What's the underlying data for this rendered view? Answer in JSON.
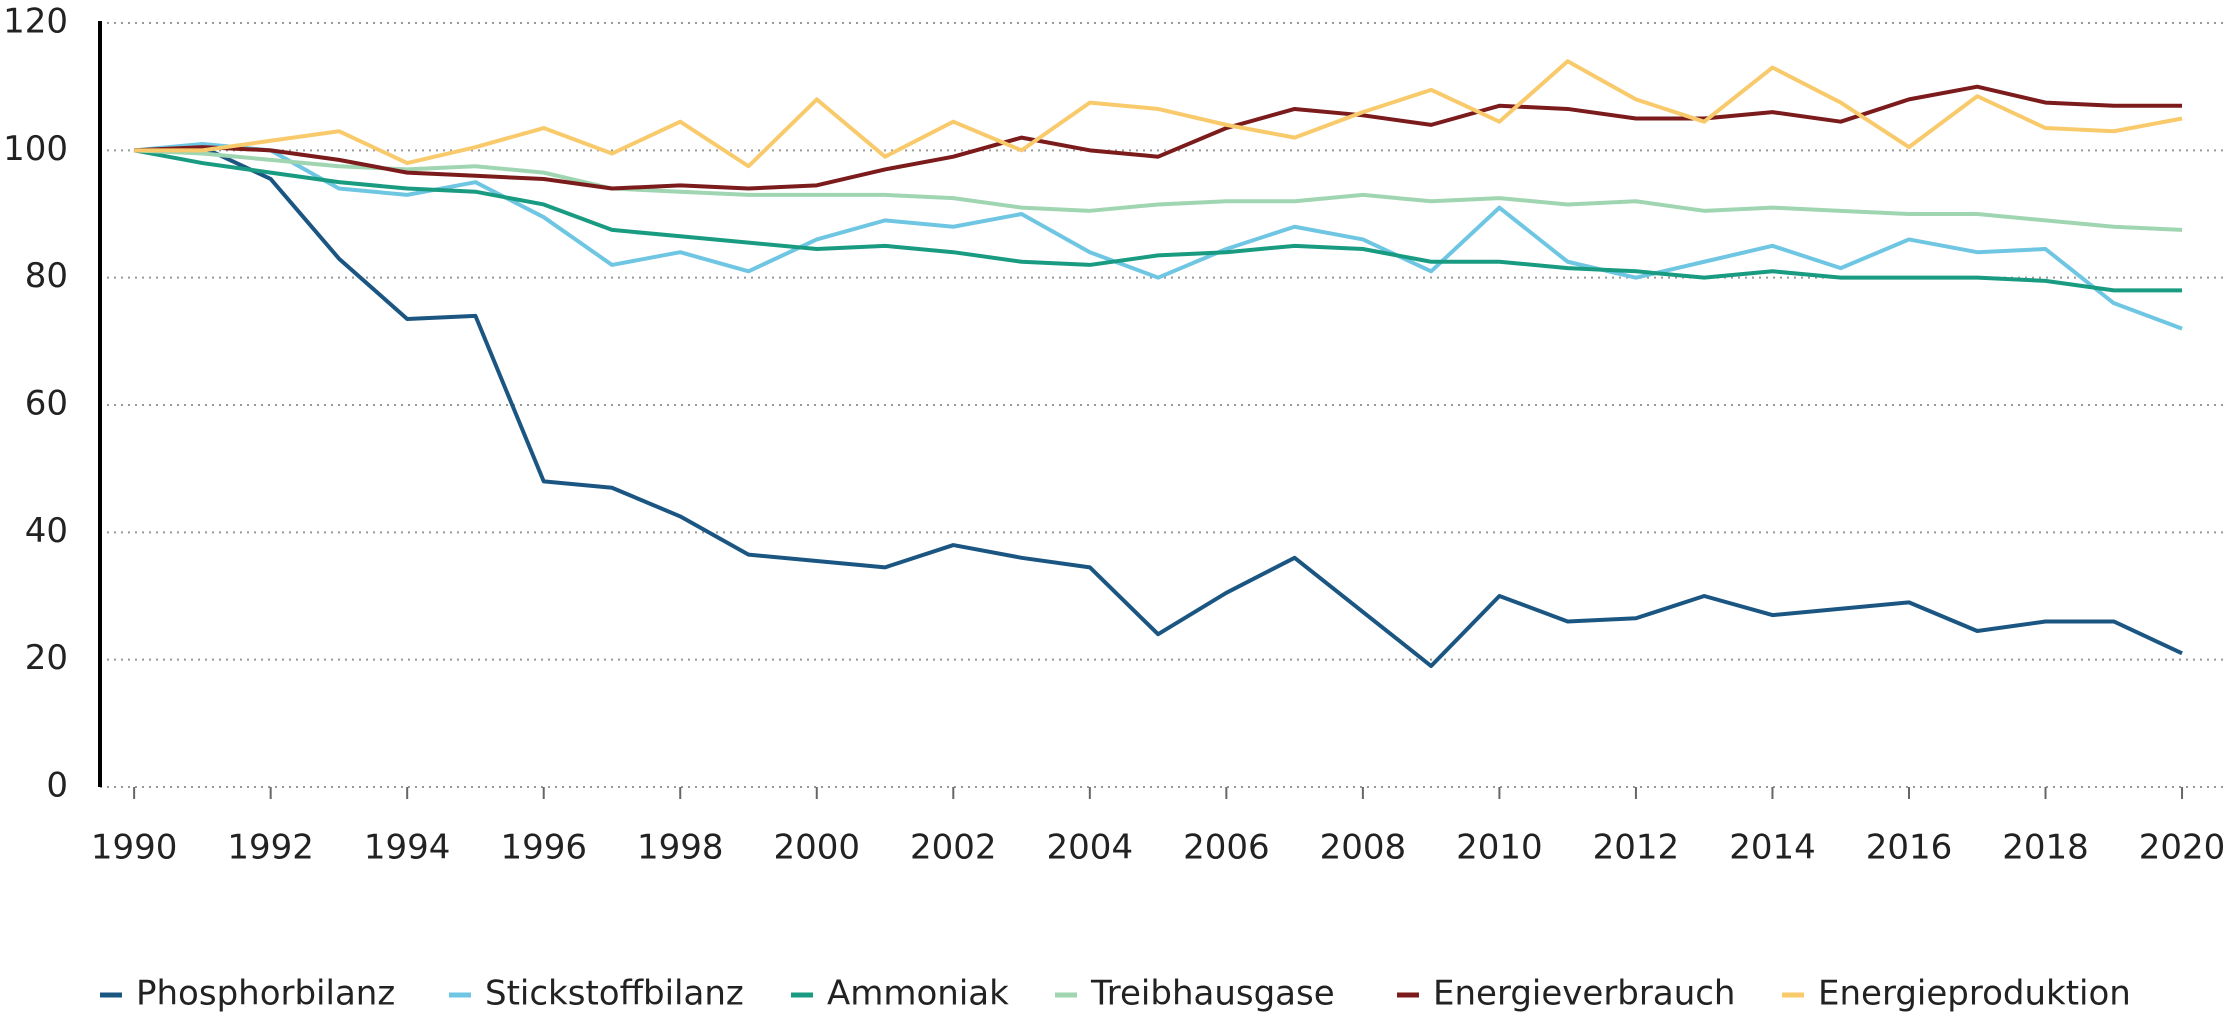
{
  "chart_data": {
    "type": "line",
    "x": [
      1990,
      1991,
      1992,
      1993,
      1994,
      1995,
      1996,
      1997,
      1998,
      1999,
      2000,
      2001,
      2002,
      2003,
      2004,
      2005,
      2006,
      2007,
      2008,
      2009,
      2010,
      2011,
      2012,
      2013,
      2014,
      2015,
      2016,
      2017,
      2018,
      2019,
      2020
    ],
    "series": [
      {
        "name": "Phosphorbilanz",
        "color": "#1b5683",
        "values": [
          100,
          100.5,
          95.5,
          83,
          73.5,
          74,
          48,
          47,
          42.5,
          36.5,
          35.5,
          34.5,
          38,
          36,
          34.5,
          24,
          30.5,
          36,
          27.5,
          19,
          30,
          26,
          26.5,
          30,
          27,
          28,
          29,
          24.5,
          26,
          26,
          21
        ]
      },
      {
        "name": "Stickstoffbilanz",
        "color": "#6fc6e3",
        "values": [
          100,
          101,
          100,
          94,
          93,
          95,
          89.5,
          82,
          84,
          81,
          86,
          89,
          88,
          90,
          84,
          80,
          84.5,
          88,
          86,
          81,
          91,
          82.5,
          80,
          82.5,
          85,
          81.5,
          86,
          84,
          84.5,
          76,
          72
        ]
      },
      {
        "name": "Ammoniak",
        "color": "#199b82",
        "values": [
          100,
          98,
          96.5,
          95,
          94,
          93.5,
          91.5,
          87.5,
          86.5,
          85.5,
          84.5,
          85,
          84,
          82.5,
          82,
          83.5,
          84,
          85,
          84.5,
          82.5,
          82.5,
          81.5,
          81,
          80,
          81,
          80,
          80,
          80,
          79.5,
          78,
          78
        ]
      },
      {
        "name": "Treibhausgase",
        "color": "#a0d5b1",
        "values": [
          100,
          99.5,
          98.5,
          97.5,
          97,
          97.5,
          96.5,
          94,
          93.5,
          93,
          93,
          93,
          92.5,
          91,
          90.5,
          91.5,
          92,
          92,
          93,
          92,
          92.5,
          91.5,
          92,
          90.5,
          91,
          90.5,
          90,
          90,
          89,
          88,
          87.5
        ]
      },
      {
        "name": "Energieverbrauch",
        "color": "#7b1b1b",
        "values": [
          100,
          100.5,
          100,
          98.5,
          96.5,
          96,
          95.5,
          94,
          94.5,
          94,
          94.5,
          97,
          99,
          102,
          100,
          99,
          103.5,
          106.5,
          105.5,
          104,
          107,
          106.5,
          105,
          105,
          106,
          104.5,
          108,
          110,
          107.5,
          107,
          107
        ]
      },
      {
        "name": "Energieproduktion",
        "color": "#f8ca6b",
        "values": [
          100,
          100,
          101.5,
          103,
          98,
          100.5,
          103.5,
          99.5,
          104.5,
          97.5,
          108,
          99,
          104.5,
          100,
          107.5,
          106.5,
          104,
          102,
          106,
          109.5,
          104.5,
          114,
          108,
          104.5,
          113,
          107.5,
          100.5,
          108.5,
          103.5,
          103,
          105
        ]
      }
    ],
    "xlim": [
      1989.5,
      2020.6
    ],
    "xticks": [
      1990,
      1992,
      1994,
      1996,
      1998,
      2000,
      2002,
      2004,
      2006,
      2008,
      2010,
      2012,
      2014,
      2016,
      2018,
      2020
    ],
    "ylim": [
      0,
      120
    ],
    "yticks": [
      0,
      20,
      40,
      60,
      80,
      100,
      120
    ],
    "grid": true,
    "legend": "bottom"
  }
}
